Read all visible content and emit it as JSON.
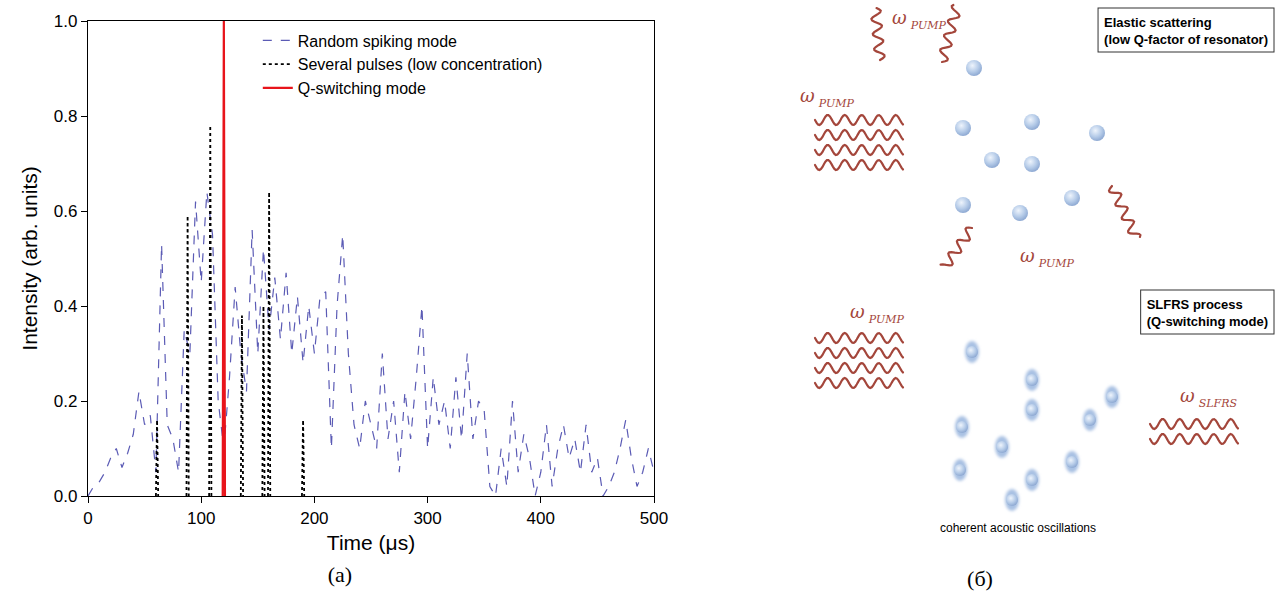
{
  "chart_data": {
    "type": "line",
    "xlabel": "Time (μs)",
    "ylabel": "Intensity (arb. units)",
    "xlim": [
      0,
      500
    ],
    "xticks": [
      0,
      100,
      200,
      300,
      400,
      500
    ],
    "ylim": [
      0,
      1.0
    ],
    "yticks": [
      {
        "value": 0,
        "label": "0.0"
      },
      0.2,
      0.4,
      0.6,
      0.8,
      {
        "value": 1.0,
        "label": "1.0"
      }
    ],
    "grid": false,
    "legend": "top right",
    "series": [
      {
        "name": "Random spiking mode",
        "color": "#5b5bb5",
        "line_style": "dashed",
        "x": [
          0,
          5,
          10,
          15,
          20,
          25,
          30,
          35,
          40,
          45,
          50,
          55,
          60,
          65,
          70,
          75,
          80,
          85,
          90,
          95,
          100,
          105,
          110,
          115,
          120,
          125,
          130,
          135,
          140,
          145,
          150,
          155,
          160,
          165,
          170,
          175,
          180,
          185,
          190,
          195,
          200,
          205,
          210,
          215,
          220,
          225,
          230,
          235,
          240,
          245,
          250,
          255,
          260,
          265,
          270,
          275,
          280,
          285,
          290,
          295,
          300,
          305,
          310,
          315,
          320,
          325,
          330,
          335,
          340,
          345,
          350,
          355,
          360,
          365,
          370,
          375,
          380,
          385,
          390,
          395,
          400,
          405,
          410,
          415,
          420,
          425,
          430,
          435,
          440,
          445,
          450,
          455,
          460,
          465,
          470,
          475,
          480,
          485,
          490,
          495,
          500
        ],
        "values": [
          0,
          0.02,
          0.03,
          0.05,
          0.08,
          0.1,
          0.06,
          0.09,
          0.13,
          0.22,
          0.15,
          0.17,
          0.05,
          0.53,
          0.15,
          0.12,
          0.05,
          0.35,
          0.3,
          0.62,
          0.45,
          0.64,
          0.55,
          0.2,
          0.1,
          0.25,
          0.44,
          0.3,
          0.22,
          0.56,
          0.3,
          0.52,
          0.35,
          0.46,
          0.33,
          0.47,
          0.3,
          0.42,
          0.28,
          0.4,
          0.3,
          0.42,
          0.43,
          0.1,
          0.4,
          0.55,
          0.3,
          0.15,
          0.1,
          0.2,
          0.15,
          0.1,
          0.3,
          0.12,
          0.2,
          0.05,
          0.22,
          0.12,
          0.25,
          0.4,
          0.1,
          0.25,
          0.15,
          0.2,
          0.1,
          0.25,
          0.12,
          0.3,
          0.12,
          0.2,
          0.18,
          0.02,
          0,
          0.1,
          0.02,
          0.2,
          0.05,
          0.13,
          0.08,
          0,
          0.05,
          0.15,
          0.02,
          0.1,
          0.15,
          0.08,
          0.12,
          0.05,
          0.15,
          0.05,
          0.08,
          0,
          0.02,
          0.05,
          0.1,
          0.16,
          0.08,
          0.02,
          0.05,
          0.1,
          0.05
        ]
      },
      {
        "name": "Several pulses (low concentration)",
        "color": "#000000",
        "line_style": "dotted",
        "x": [
          60,
          61,
          62,
          63,
          87,
          88,
          89,
          90,
          107,
          108,
          109,
          110,
          135,
          136,
          137,
          138,
          154,
          155,
          156,
          157,
          159,
          160,
          161,
          162,
          189,
          190,
          191
        ],
        "values": [
          0,
          0.16,
          0,
          null,
          0,
          0.59,
          0,
          null,
          0,
          0.78,
          0,
          null,
          0,
          0.38,
          0,
          null,
          0,
          0.4,
          0,
          null,
          0,
          0.64,
          0,
          null,
          0,
          0.16,
          0
        ]
      },
      {
        "name": "Q-switching mode",
        "color": "#e8141b",
        "line_style": "solid",
        "x": [
          119,
          120,
          121
        ],
        "values": [
          0,
          1.0,
          0
        ]
      }
    ]
  },
  "panel_labels": [
    "(a)",
    "(б)"
  ],
  "diagram": {
    "elastic": {
      "box": [
        "Elastic scattering",
        "(low Q-factor of resonator)"
      ],
      "wave_label": {
        "symbol": "ω",
        "subscript": "PUMP"
      }
    },
    "slfrs": {
      "box": [
        "SLFRS process",
        "(Q-switching mode)"
      ],
      "input_label": {
        "symbol": "ω",
        "subscript": "PUMP"
      },
      "output_label": {
        "symbol": "ω",
        "subscript": "SLFRS"
      },
      "caption": "coherent acoustic oscillations"
    }
  }
}
